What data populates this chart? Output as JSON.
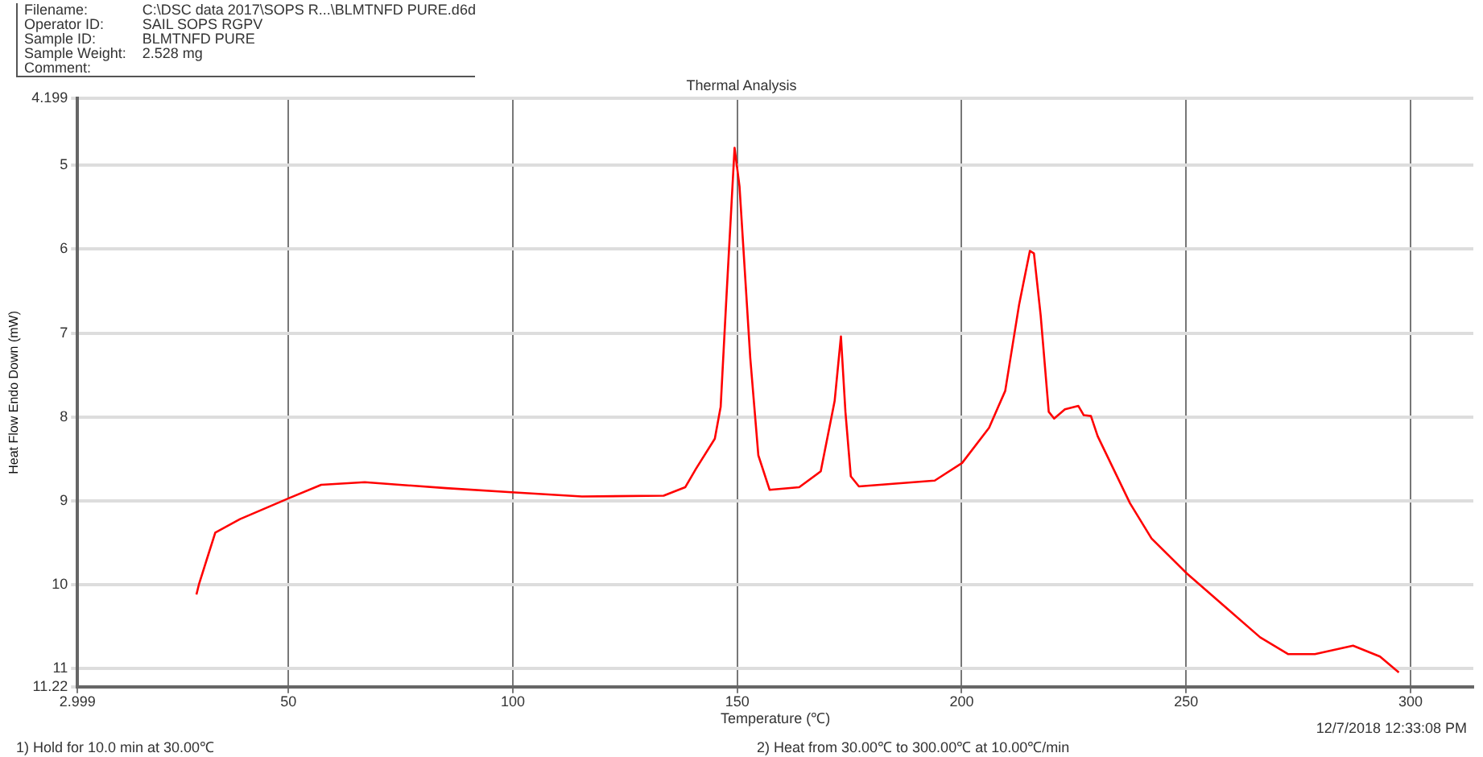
{
  "chart_data": {
    "type": "line",
    "title": "Thermal Analysis",
    "xlabel": "Temperature (℃)",
    "ylabel": "Heat Flow Endo Down (mW)",
    "annotations": [
      "Filename:",
      "C:\\DSC data 2017\\SOPS R...\\BLMTNFD PURE.d6d",
      "Operator ID:",
      "SAIL SOPS RGPV",
      "Sample ID:",
      "BLMTNFD PURE",
      "Sample Weight:",
      "2.528 mg",
      "Comment:",
      "12/7/2018 12:33:08 PM",
      "1)  Hold for 10.0 min at 30.00℃",
      "2)  Heat from 30.00℃ to 300.00℃ at 10.00℃/min"
    ],
    "x": [
      29.5,
      30.1,
      33.7,
      39.2,
      50.1,
      57.3,
      67,
      85.1,
      99.7,
      115.4,
      133.6,
      138.4,
      140.8,
      145,
      146.3,
      147.5,
      149.4,
      150.5,
      152.9,
      154.7,
      157.2,
      163.8,
      168.6,
      171.7,
      173.1,
      174.1,
      175.3,
      177.1,
      194,
      200.1,
      206.1,
      209.7,
      212.8,
      215.2,
      216.1,
      217.6,
      219.4,
      220.6,
      223,
      226,
      227.2,
      228.8,
      230.3,
      237.5,
      242.3,
      250.2,
      266.5,
      272.7,
      278.7,
      287.2,
      293.2,
      297.4
    ],
    "series": [
      {
        "color": "#ff0000",
        "values": [
          10.12,
          9.99,
          9.38,
          9.22,
          8.97,
          8.81,
          8.78,
          8.85,
          8.9,
          8.95,
          8.94,
          8.84,
          8.62,
          8.26,
          7.88,
          6.66,
          4.79,
          5.25,
          7.3,
          8.46,
          8.87,
          8.84,
          8.65,
          7.81,
          7.04,
          7.94,
          8.71,
          8.83,
          8.76,
          8.55,
          8.13,
          7.69,
          6.66,
          6.02,
          6.05,
          6.79,
          7.94,
          8.02,
          7.91,
          7.87,
          7.98,
          7.99,
          8.23,
          9.03,
          9.45,
          9.87,
          10.63,
          10.83,
          10.83,
          10.73,
          10.86,
          11.05
        ]
      }
    ],
    "xlim": [
      2.999,
      314
    ],
    "xticks": [
      2.999,
      50,
      100,
      150,
      200,
      250,
      300
    ],
    "ylim": [
      11.22,
      4.199
    ],
    "yticks": [
      4.199,
      5,
      6,
      7,
      8,
      9,
      10,
      11,
      11.22
    ],
    "grid": true,
    "legend": false,
    "marker": "none",
    "line_style": "solid"
  }
}
